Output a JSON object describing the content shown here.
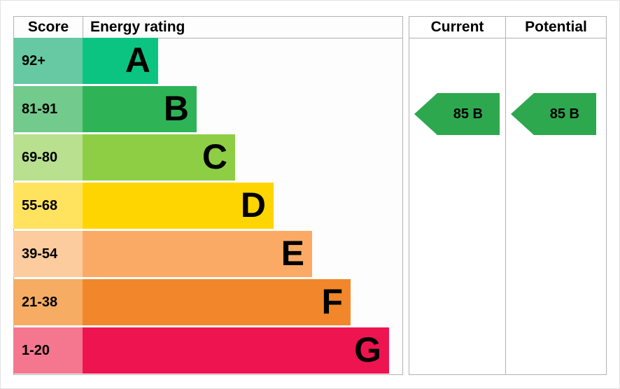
{
  "header": {
    "score": "Score",
    "energy_rating": "Energy rating",
    "current": "Current",
    "potential": "Potential"
  },
  "chart_data": {
    "type": "bar",
    "subtype": "epc-energy-rating",
    "bands": [
      {
        "letter": "A",
        "score_range": "92+",
        "bar_color": "#0cc481",
        "score_cell_color": "#66c9a3"
      },
      {
        "letter": "B",
        "score_range": "81-91",
        "bar_color": "#2eb457",
        "score_cell_color": "#72ca8c"
      },
      {
        "letter": "C",
        "score_range": "69-80",
        "bar_color": "#8ece45",
        "score_cell_color": "#b8e08f"
      },
      {
        "letter": "D",
        "score_range": "55-68",
        "bar_color": "#ffd500",
        "score_cell_color": "#ffe35e"
      },
      {
        "letter": "E",
        "score_range": "39-54",
        "bar_color": "#fbaa65",
        "score_cell_color": "#fccb9e"
      },
      {
        "letter": "F",
        "score_range": "21-38",
        "bar_color": "#f1872a",
        "score_cell_color": "#f6ac62"
      },
      {
        "letter": "G",
        "score_range": "1-20",
        "bar_color": "#ee1450",
        "score_cell_color": "#f4778f"
      }
    ],
    "current": {
      "value": 85,
      "band": "B",
      "label": "85 B",
      "arrow_color": "#2ea84e",
      "band_index": 1
    },
    "potential": {
      "value": 85,
      "band": "B",
      "label": "85 B",
      "arrow_color": "#2ea84e",
      "band_index": 1
    }
  },
  "colors": {
    "grid_border": "#b2b2b2",
    "background": "#ffffff",
    "text": "#000000"
  }
}
